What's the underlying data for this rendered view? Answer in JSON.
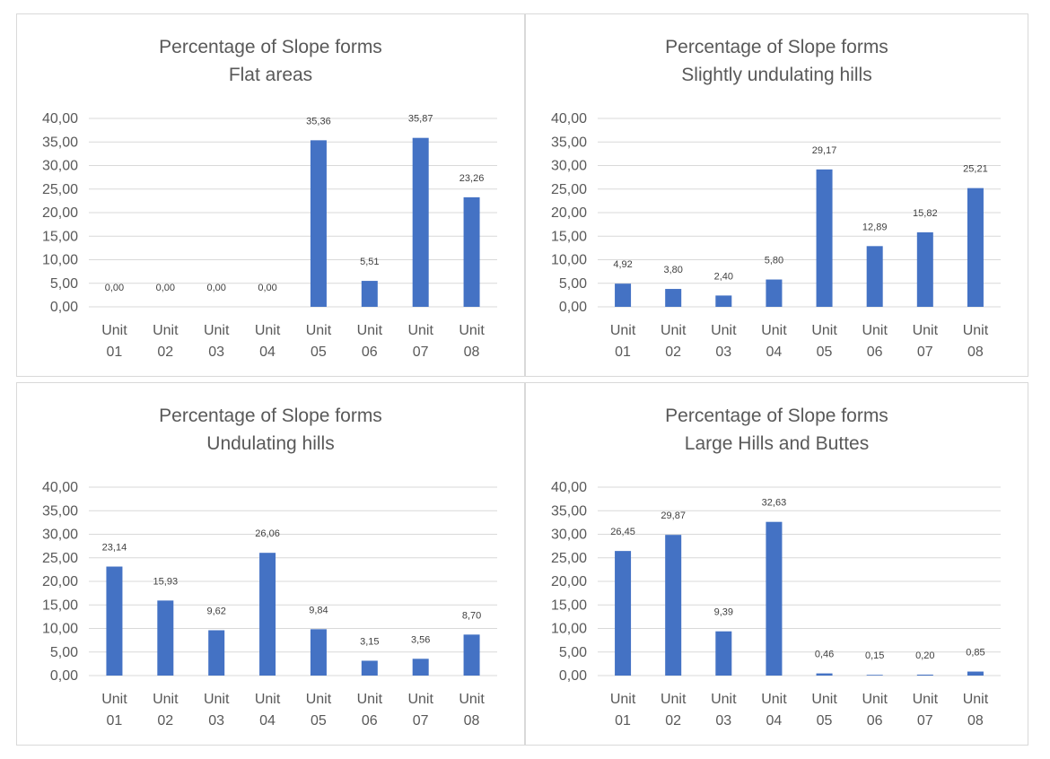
{
  "chart_data": [
    {
      "type": "bar",
      "title": [
        "Percentage of Slope forms",
        "Flat areas"
      ],
      "categories": [
        [
          "Unit",
          "01"
        ],
        [
          "Unit",
          "02"
        ],
        [
          "Unit",
          "03"
        ],
        [
          "Unit",
          "04"
        ],
        [
          "Unit",
          "05"
        ],
        [
          "Unit",
          "06"
        ],
        [
          "Unit",
          "07"
        ],
        [
          "Unit",
          "08"
        ]
      ],
      "values": [
        0.0,
        0.0,
        0.0,
        0.0,
        35.36,
        5.51,
        35.87,
        23.26
      ],
      "value_labels": [
        "0,00",
        "0,00",
        "0,00",
        "0,00",
        "35,36",
        "5,51",
        "35,87",
        "23,26"
      ],
      "yticks": [
        "0,00",
        "5,00",
        "10,00",
        "15,00",
        "20,00",
        "25,00",
        "30,00",
        "35,00",
        "40,00"
      ],
      "ylim": [
        0,
        40
      ],
      "xlabel": "",
      "ylabel": "",
      "bar_color": "#4472c4",
      "grid": true
    },
    {
      "type": "bar",
      "title": [
        "Percentage of Slope forms",
        "Slightly undulating hills"
      ],
      "categories": [
        [
          "Unit",
          "01"
        ],
        [
          "Unit",
          "02"
        ],
        [
          "Unit",
          "03"
        ],
        [
          "Unit",
          "04"
        ],
        [
          "Unit",
          "05"
        ],
        [
          "Unit",
          "06"
        ],
        [
          "Unit",
          "07"
        ],
        [
          "Unit",
          "08"
        ]
      ],
      "values": [
        4.92,
        3.8,
        2.4,
        5.8,
        29.17,
        12.89,
        15.82,
        25.21
      ],
      "value_labels": [
        "4,92",
        "3,80",
        "2,40",
        "5,80",
        "29,17",
        "12,89",
        "15,82",
        "25,21"
      ],
      "yticks": [
        "0,00",
        "5,00",
        "10,00",
        "15,00",
        "20,00",
        "25,00",
        "30,00",
        "35,00",
        "40,00"
      ],
      "ylim": [
        0,
        40
      ],
      "xlabel": "",
      "ylabel": "",
      "bar_color": "#4472c4",
      "grid": true
    },
    {
      "type": "bar",
      "title": [
        "Percentage of Slope forms",
        "Undulating hills"
      ],
      "categories": [
        [
          "Unit",
          "01"
        ],
        [
          "Unit",
          "02"
        ],
        [
          "Unit",
          "03"
        ],
        [
          "Unit",
          "04"
        ],
        [
          "Unit",
          "05"
        ],
        [
          "Unit",
          "06"
        ],
        [
          "Unit",
          "07"
        ],
        [
          "Unit",
          "08"
        ]
      ],
      "values": [
        23.14,
        15.93,
        9.62,
        26.06,
        9.84,
        3.15,
        3.56,
        8.7
      ],
      "value_labels": [
        "23,14",
        "15,93",
        "9,62",
        "26,06",
        "9,84",
        "3,15",
        "3,56",
        "8,70"
      ],
      "yticks": [
        "0,00",
        "5,00",
        "10,00",
        "15,00",
        "20,00",
        "25,00",
        "30,00",
        "35,00",
        "40,00"
      ],
      "ylim": [
        0,
        40
      ],
      "xlabel": "",
      "ylabel": "",
      "bar_color": "#4472c4",
      "grid": true
    },
    {
      "type": "bar",
      "title": [
        "Percentage of Slope forms",
        "Large Hills and Buttes"
      ],
      "categories": [
        [
          "Unit",
          "01"
        ],
        [
          "Unit",
          "02"
        ],
        [
          "Unit",
          "03"
        ],
        [
          "Unit",
          "04"
        ],
        [
          "Unit",
          "05"
        ],
        [
          "Unit",
          "06"
        ],
        [
          "Unit",
          "07"
        ],
        [
          "Unit",
          "08"
        ]
      ],
      "values": [
        26.45,
        29.87,
        9.39,
        32.63,
        0.46,
        0.15,
        0.2,
        0.85
      ],
      "value_labels": [
        "26,45",
        "29,87",
        "9,39",
        "32,63",
        "0,46",
        "0,15",
        "0,20",
        "0,85"
      ],
      "yticks": [
        "0,00",
        "5,00",
        "10,00",
        "15,00",
        "20,00",
        "25,00",
        "30,00",
        "35,00",
        "40,00"
      ],
      "ylim": [
        0,
        40
      ],
      "xlabel": "",
      "ylabel": "",
      "bar_color": "#4472c4",
      "grid": true
    }
  ]
}
